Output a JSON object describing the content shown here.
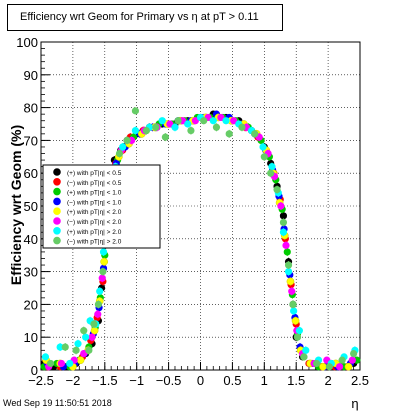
{
  "chart_data": {
    "type": "scatter",
    "title": "Efficiency wrt Geom for Primary vs    η at pT > 0.11",
    "xlabel": "η",
    "ylabel": "Efficiency wrt Geom (%)",
    "xlim": [
      -2.5,
      2.5
    ],
    "ylim": [
      0,
      100
    ],
    "xticks": [
      "−2.5",
      "−2",
      "−1.5",
      "−1",
      "−0.5",
      "0",
      "0.5",
      "1",
      "1.5",
      "2",
      "2.5"
    ],
    "yticks": [
      "0",
      "10",
      "20",
      "30",
      "40",
      "50",
      "60",
      "70",
      "80",
      "90",
      "100"
    ],
    "grid": true,
    "legend_position": "left",
    "series": [
      {
        "name": "(+) with pT|η| < 0.5",
        "color": "#000000",
        "marker": "circle",
        "values": [
          [
            -2.45,
            2
          ],
          [
            -2.3,
            1
          ],
          [
            -2.1,
            1
          ],
          [
            -1.95,
            2
          ],
          [
            -1.8,
            5
          ],
          [
            -1.7,
            8
          ],
          [
            -1.6,
            15
          ],
          [
            -1.55,
            25
          ],
          [
            -1.5,
            38
          ],
          [
            -1.45,
            50
          ],
          [
            -1.4,
            60
          ],
          [
            -1.35,
            64
          ],
          [
            -1.25,
            67
          ],
          [
            -1.15,
            70
          ],
          [
            -1.0,
            72
          ],
          [
            -0.8,
            74
          ],
          [
            -0.6,
            75
          ],
          [
            -0.4,
            75
          ],
          [
            -0.2,
            76
          ],
          [
            0.0,
            77
          ],
          [
            0.2,
            78
          ],
          [
            0.4,
            77
          ],
          [
            0.6,
            76
          ],
          [
            0.8,
            73
          ],
          [
            1.0,
            68
          ],
          [
            1.1,
            63
          ],
          [
            1.2,
            56
          ],
          [
            1.3,
            47
          ],
          [
            1.38,
            33
          ],
          [
            1.45,
            20
          ],
          [
            1.5,
            10
          ],
          [
            1.6,
            4
          ],
          [
            1.8,
            2
          ],
          [
            2.0,
            1
          ],
          [
            2.2,
            1
          ],
          [
            2.4,
            2
          ]
        ]
      },
      {
        "name": "(−) with pT|η| < 0.5",
        "color": "#ff0000",
        "marker": "circle",
        "values": [
          [
            -2.4,
            1
          ],
          [
            -2.2,
            1
          ],
          [
            -2.0,
            2
          ],
          [
            -1.85,
            4
          ],
          [
            -1.72,
            9
          ],
          [
            -1.62,
            16
          ],
          [
            -1.53,
            27
          ],
          [
            -1.47,
            42
          ],
          [
            -1.4,
            55
          ],
          [
            -1.33,
            63
          ],
          [
            -1.22,
            67
          ],
          [
            -1.1,
            71
          ],
          [
            -0.9,
            73
          ],
          [
            -0.7,
            74
          ],
          [
            -0.5,
            75
          ],
          [
            -0.3,
            76
          ],
          [
            -0.1,
            76
          ],
          [
            0.1,
            77
          ],
          [
            0.3,
            77
          ],
          [
            0.5,
            76
          ],
          [
            0.7,
            74
          ],
          [
            0.9,
            71
          ],
          [
            1.05,
            66
          ],
          [
            1.15,
            60
          ],
          [
            1.25,
            52
          ],
          [
            1.33,
            40
          ],
          [
            1.42,
            26
          ],
          [
            1.5,
            14
          ],
          [
            1.58,
            6
          ],
          [
            1.7,
            2
          ],
          [
            1.9,
            1
          ],
          [
            2.1,
            1
          ],
          [
            2.3,
            1
          ]
        ]
      },
      {
        "name": "(+) with pT|η| < 1.0",
        "color": "#00cc00",
        "marker": "circle",
        "values": [
          [
            -2.45,
            1
          ],
          [
            -2.25,
            2
          ],
          [
            -2.05,
            1
          ],
          [
            -1.9,
            3
          ],
          [
            -1.75,
            7
          ],
          [
            -1.65,
            13
          ],
          [
            -1.57,
            22
          ],
          [
            -1.5,
            35
          ],
          [
            -1.43,
            48
          ],
          [
            -1.37,
            58
          ],
          [
            -1.3,
            64
          ],
          [
            -1.2,
            68
          ],
          [
            -1.05,
            71
          ],
          [
            -0.85,
            73
          ],
          [
            -0.65,
            75
          ],
          [
            -0.45,
            75
          ],
          [
            -0.25,
            76
          ],
          [
            -0.05,
            77
          ],
          [
            0.15,
            77
          ],
          [
            0.35,
            77
          ],
          [
            0.55,
            76
          ],
          [
            0.75,
            74
          ],
          [
            0.95,
            70
          ],
          [
            1.08,
            65
          ],
          [
            1.18,
            58
          ],
          [
            1.28,
            49
          ],
          [
            1.36,
            36
          ],
          [
            1.44,
            23
          ],
          [
            1.52,
            11
          ],
          [
            1.62,
            4
          ],
          [
            1.85,
            1
          ],
          [
            2.05,
            2
          ],
          [
            2.25,
            1
          ],
          [
            2.45,
            3
          ]
        ]
      },
      {
        "name": "(−) with pT|η| < 1.0",
        "color": "#0000ff",
        "marker": "circle",
        "values": [
          [
            -2.4,
            2
          ],
          [
            -2.15,
            1
          ],
          [
            -1.97,
            2
          ],
          [
            -1.82,
            5
          ],
          [
            -1.68,
            11
          ],
          [
            -1.59,
            19
          ],
          [
            -1.52,
            31
          ],
          [
            -1.46,
            45
          ],
          [
            -1.39,
            57
          ],
          [
            -1.32,
            63
          ],
          [
            -1.18,
            68
          ],
          [
            -0.95,
            72
          ],
          [
            -0.75,
            74
          ],
          [
            -0.55,
            75
          ],
          [
            -0.35,
            76
          ],
          [
            -0.15,
            76
          ],
          [
            0.05,
            77
          ],
          [
            0.25,
            78
          ],
          [
            0.45,
            77
          ],
          [
            0.65,
            75
          ],
          [
            0.85,
            72
          ],
          [
            1.02,
            67
          ],
          [
            1.13,
            61
          ],
          [
            1.23,
            53
          ],
          [
            1.31,
            43
          ],
          [
            1.4,
            29
          ],
          [
            1.48,
            16
          ],
          [
            1.56,
            7
          ],
          [
            1.75,
            2
          ],
          [
            1.95,
            1
          ],
          [
            2.15,
            1
          ],
          [
            2.35,
            2
          ]
        ]
      },
      {
        "name": "(+) with pT|η| < 2.0",
        "color": "#ffff00",
        "marker": "circle",
        "values": [
          [
            -2.42,
            3
          ],
          [
            -2.2,
            2
          ],
          [
            -2.0,
            1
          ],
          [
            -1.88,
            3
          ],
          [
            -1.76,
            6
          ],
          [
            -1.66,
            12
          ],
          [
            -1.58,
            21
          ],
          [
            -1.51,
            33
          ],
          [
            -1.44,
            47
          ],
          [
            -1.38,
            57
          ],
          [
            -1.28,
            65
          ],
          [
            -1.12,
            69
          ],
          [
            -0.92,
            72
          ],
          [
            -0.72,
            74
          ],
          [
            -0.52,
            75
          ],
          [
            -0.32,
            76
          ],
          [
            -0.12,
            76
          ],
          [
            0.08,
            77
          ],
          [
            0.28,
            77
          ],
          [
            0.48,
            76
          ],
          [
            0.68,
            75
          ],
          [
            0.88,
            72
          ],
          [
            1.03,
            67
          ],
          [
            1.14,
            60
          ],
          [
            1.24,
            51
          ],
          [
            1.32,
            41
          ],
          [
            1.41,
            27
          ],
          [
            1.49,
            15
          ],
          [
            1.57,
            6
          ],
          [
            1.72,
            2
          ],
          [
            1.92,
            1
          ],
          [
            2.12,
            2
          ],
          [
            2.32,
            1
          ]
        ]
      },
      {
        "name": "(−) with pT|η| < 2.0",
        "color": "#ff00ff",
        "marker": "circle",
        "values": [
          [
            -2.38,
            1
          ],
          [
            -2.18,
            2
          ],
          [
            -1.98,
            3
          ],
          [
            -1.83,
            5
          ],
          [
            -1.7,
            10
          ],
          [
            -1.61,
            17
          ],
          [
            -1.54,
            28
          ],
          [
            -1.48,
            41
          ],
          [
            -1.41,
            54
          ],
          [
            -1.34,
            62
          ],
          [
            -1.24,
            67
          ],
          [
            -1.08,
            70
          ],
          [
            -0.88,
            73
          ],
          [
            -0.68,
            74
          ],
          [
            -0.48,
            75
          ],
          [
            -0.28,
            76
          ],
          [
            -0.08,
            76
          ],
          [
            0.12,
            77
          ],
          [
            0.32,
            77
          ],
          [
            0.52,
            76
          ],
          [
            0.72,
            74
          ],
          [
            0.92,
            71
          ],
          [
            1.06,
            66
          ],
          [
            1.16,
            59
          ],
          [
            1.26,
            50
          ],
          [
            1.34,
            38
          ],
          [
            1.43,
            24
          ],
          [
            1.51,
            12
          ],
          [
            1.6,
            5
          ],
          [
            1.78,
            2
          ],
          [
            1.98,
            3
          ],
          [
            2.18,
            1
          ],
          [
            2.38,
            3
          ]
        ]
      },
      {
        "name": "(+) with pT|η| > 2.0",
        "color": "#00ffff",
        "marker": "circle",
        "values": [
          [
            -2.43,
            4
          ],
          [
            -2.2,
            7
          ],
          [
            -2.05,
            2
          ],
          [
            -1.92,
            8
          ],
          [
            -1.8,
            10
          ],
          [
            -1.73,
            15
          ],
          [
            -1.64,
            14
          ],
          [
            -1.58,
            24
          ],
          [
            -1.52,
            36
          ],
          [
            -1.46,
            50
          ],
          [
            -1.4,
            56
          ],
          [
            -1.33,
            62
          ],
          [
            -1.22,
            68
          ],
          [
            -1.02,
            73
          ],
          [
            -0.8,
            74
          ],
          [
            -0.6,
            76
          ],
          [
            -0.4,
            74
          ],
          [
            -0.2,
            75
          ],
          [
            0.0,
            77
          ],
          [
            0.2,
            76
          ],
          [
            0.4,
            76
          ],
          [
            0.6,
            75
          ],
          [
            0.8,
            73
          ],
          [
            0.98,
            68
          ],
          [
            1.12,
            62
          ],
          [
            1.22,
            54
          ],
          [
            1.3,
            42
          ],
          [
            1.38,
            30
          ],
          [
            1.46,
            18
          ],
          [
            1.55,
            12
          ],
          [
            1.65,
            6
          ],
          [
            1.85,
            3
          ],
          [
            2.05,
            2
          ],
          [
            2.25,
            4
          ],
          [
            2.42,
            6
          ]
        ]
      },
      {
        "name": "(−) with pT|η| > 2.0",
        "color": "#66cc66",
        "marker": "circle",
        "values": [
          [
            -2.35,
            2
          ],
          [
            -2.12,
            7
          ],
          [
            -1.95,
            6
          ],
          [
            -1.83,
            12
          ],
          [
            -1.75,
            6
          ],
          [
            -1.67,
            14
          ],
          [
            -1.6,
            20
          ],
          [
            -1.53,
            30
          ],
          [
            -1.47,
            46
          ],
          [
            -1.42,
            55
          ],
          [
            -1.35,
            60
          ],
          [
            -1.27,
            66
          ],
          [
            -1.15,
            70
          ],
          [
            -1.02,
            79
          ],
          [
            -0.85,
            73
          ],
          [
            -0.7,
            74
          ],
          [
            -0.55,
            71
          ],
          [
            -0.35,
            76
          ],
          [
            -0.15,
            73
          ],
          [
            0.05,
            76
          ],
          [
            0.25,
            74
          ],
          [
            0.45,
            72
          ],
          [
            0.65,
            74
          ],
          [
            0.85,
            72
          ],
          [
            1.0,
            65
          ],
          [
            1.1,
            60
          ],
          [
            1.2,
            55
          ],
          [
            1.3,
            45
          ],
          [
            1.38,
            32
          ],
          [
            1.45,
            20
          ],
          [
            1.52,
            10
          ],
          [
            1.62,
            4
          ],
          [
            1.82,
            2
          ],
          [
            2.02,
            1
          ],
          [
            2.22,
            3
          ],
          [
            2.4,
            5
          ]
        ]
      }
    ]
  },
  "footer": {
    "timestamp": "Wed Sep 19 11:50:51 2018"
  }
}
